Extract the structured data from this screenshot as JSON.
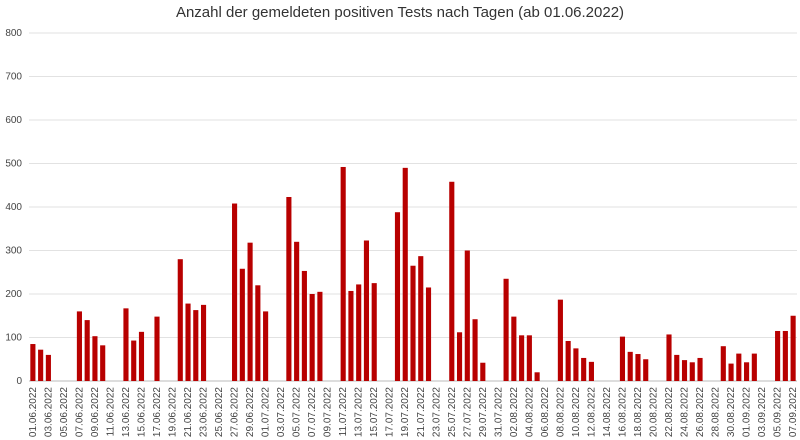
{
  "chart_data": {
    "type": "bar",
    "title": "Anzahl der gemeldeten positiven Tests nach Tagen (ab 01.06.2022)",
    "categories": [
      "01.06.2022",
      null,
      "03.06.2022",
      null,
      "05.06.2022",
      null,
      "07.06.2022",
      null,
      "09.06.2022",
      null,
      "11.06.2022",
      null,
      "13.06.2022",
      null,
      "15.06.2022",
      null,
      "17.06.2022",
      null,
      "19.06.2022",
      null,
      "21.06.2022",
      null,
      "23.06.2022",
      null,
      "25.06.2022",
      null,
      "27.06.2022",
      null,
      "29.06.2022",
      null,
      "01.07.2022",
      null,
      "03.07.2022",
      null,
      "05.07.2022",
      null,
      "07.07.2022",
      null,
      "09.07.2022",
      null,
      "11.07.2022",
      null,
      "13.07.2022",
      null,
      "15.07.2022",
      null,
      "17.07.2022",
      null,
      "19.07.2022",
      null,
      "21.07.2022",
      null,
      "23.07.2022",
      null,
      "25.07.2022",
      null,
      "27.07.2022",
      null,
      "29.07.2022",
      null,
      "31.07.2022",
      null,
      "02.08.2022",
      null,
      "04.08.2022",
      null,
      "06.08.2022",
      null,
      "08.08.2022",
      null,
      "10.08.2022",
      null,
      "12.08.2022",
      null,
      "14.08.2022",
      null,
      "16.08.2022",
      null,
      "18.08.2022",
      null,
      "20.08.2022",
      null,
      "22.08.2022",
      null,
      "24.08.2022",
      null,
      "26.08.2022",
      null,
      "28.08.2022",
      null,
      "30.08.2022",
      null,
      "01.09.2022",
      null,
      "03.09.2022",
      null,
      "05.09.2022",
      null,
      "07.09.2022"
    ],
    "values": [
      85,
      72,
      60,
      0,
      0,
      0,
      160,
      140,
      103,
      82,
      0,
      0,
      167,
      93,
      113,
      0,
      148,
      0,
      0,
      280,
      178,
      163,
      175,
      0,
      0,
      0,
      408,
      258,
      318,
      220,
      160,
      0,
      0,
      423,
      320,
      253,
      200,
      205,
      0,
      0,
      492,
      207,
      222,
      323,
      225,
      0,
      0,
      388,
      490,
      265,
      287,
      215,
      0,
      0,
      458,
      112,
      300,
      142,
      42,
      0,
      0,
      235,
      148,
      105,
      105,
      20,
      0,
      0,
      187,
      92,
      75,
      53,
      44,
      0,
      0,
      0,
      102,
      67,
      62,
      50,
      0,
      0,
      107,
      60,
      48,
      43,
      53,
      0,
      0,
      80,
      40,
      63,
      43,
      63,
      0,
      0,
      115,
      115,
      150
    ],
    "color": "#b80000",
    "ylim": [
      0,
      800
    ],
    "yticks": [
      0,
      100,
      200,
      300,
      400,
      500,
      600,
      700,
      800
    ],
    "grid": true
  }
}
